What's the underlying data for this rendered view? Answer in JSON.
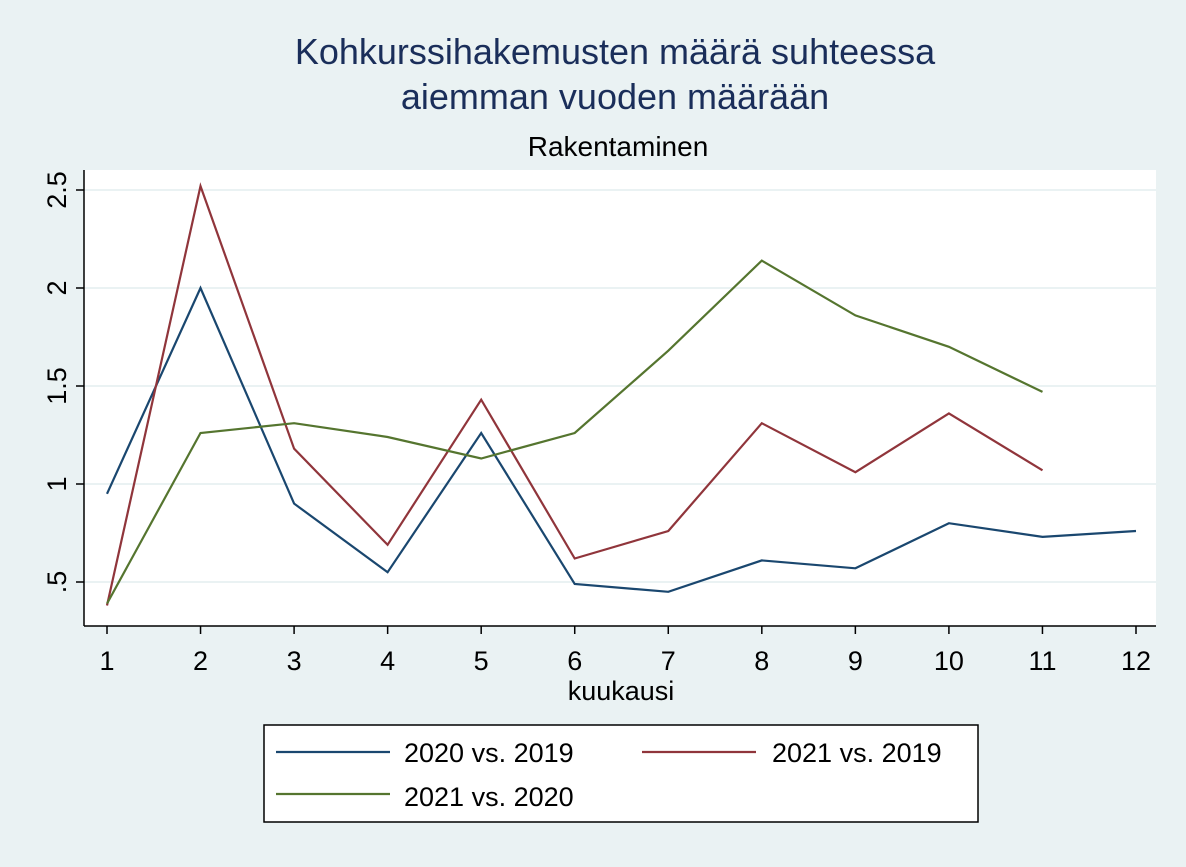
{
  "chart_data": {
    "type": "line",
    "title_lines": [
      "Kohkurssihakemusten määrä suhteessa",
      "aiemman vuoden määrään"
    ],
    "subtitle": "Rakentaminen",
    "xlabel": "kuukausi",
    "ylabel": "",
    "x": [
      1,
      2,
      3,
      4,
      5,
      6,
      7,
      8,
      9,
      10,
      11,
      12
    ],
    "x_ticks": [
      "1",
      "2",
      "3",
      "4",
      "5",
      "6",
      "7",
      "8",
      "9",
      "10",
      "11",
      "12"
    ],
    "y_ticks": [
      ".5",
      "1",
      "1.5",
      "2",
      "2.5"
    ],
    "y_tick_values": [
      0.5,
      1,
      1.5,
      2,
      2.5
    ],
    "xlim": [
      1,
      12
    ],
    "ylim": [
      0.5,
      2.5
    ],
    "grid": true,
    "legend_position": "bottom",
    "series": [
      {
        "name": "2020 vs. 2019",
        "color": "#1a476f",
        "values": [
          0.95,
          2.0,
          0.9,
          0.55,
          1.26,
          0.49,
          0.45,
          0.61,
          0.57,
          0.8,
          0.73,
          0.76
        ]
      },
      {
        "name": "2021 vs. 2019",
        "color": "#90353b",
        "values": [
          0.38,
          2.52,
          1.18,
          0.69,
          1.43,
          0.62,
          0.76,
          1.31,
          1.06,
          1.36,
          1.07,
          null
        ]
      },
      {
        "name": "2021 vs. 2020",
        "color": "#55752f",
        "values": [
          0.39,
          1.26,
          1.31,
          1.24,
          1.13,
          1.26,
          1.68,
          2.14,
          1.86,
          1.7,
          1.47,
          null
        ]
      }
    ]
  }
}
